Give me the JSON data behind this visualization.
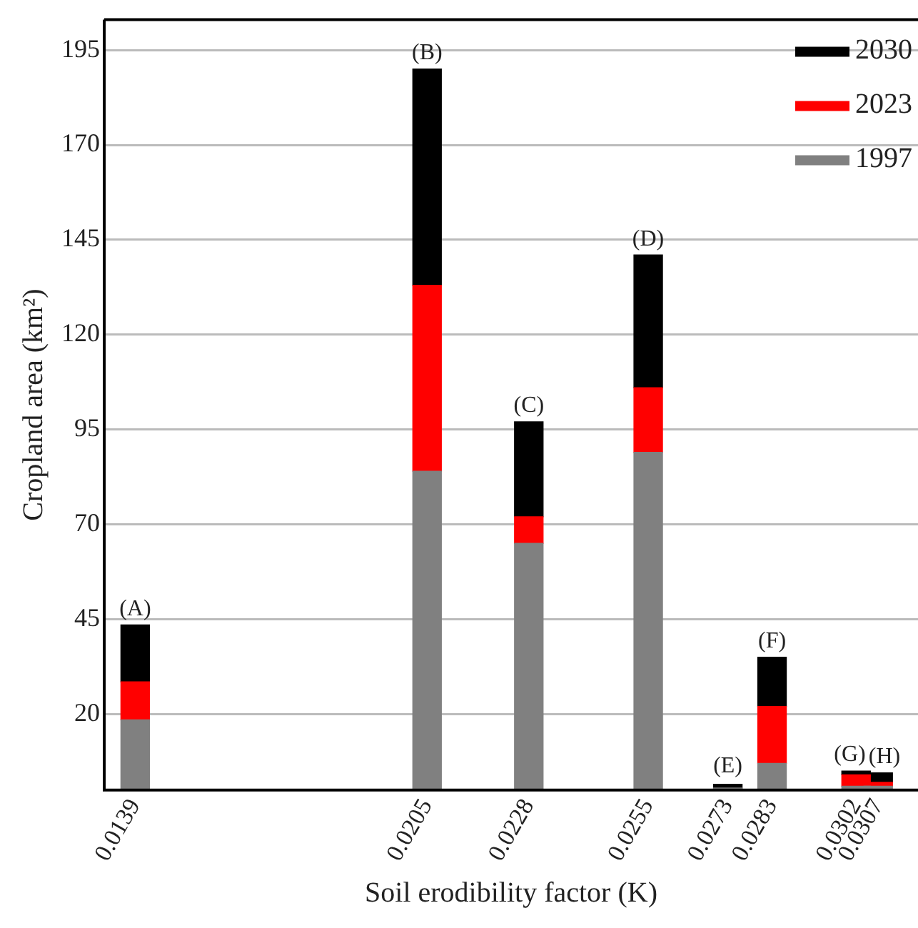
{
  "chart_data": {
    "type": "bar",
    "stacked": true,
    "xlabel": "Soil erodibility factor (K)",
    "ylabel": "Cropland area (km²)",
    "x": [
      0.0139,
      0.0205,
      0.0228,
      0.0255,
      0.0273,
      0.0283,
      0.0302,
      0.0307
    ],
    "xlim": [
      0.0132,
      0.0316
    ],
    "xticks": [
      0.0139,
      0.0205,
      0.0228,
      0.0255,
      0.0273,
      0.0283,
      0.0302,
      0.0307
    ],
    "ylim": [
      0,
      203
    ],
    "yticks": [
      20,
      45,
      70,
      95,
      120,
      145,
      170,
      195
    ],
    "series": [
      {
        "name": "1997",
        "color": "#808080",
        "values": [
          18.5,
          84,
          65,
          89,
          0.5,
          7,
          1,
          1
        ]
      },
      {
        "name": "2023",
        "color": "#ff0000",
        "values": [
          10,
          49,
          7,
          17,
          null,
          15,
          3,
          1
        ]
      },
      {
        "name": "2030",
        "color": "#000000",
        "values": [
          15,
          57,
          25,
          35,
          1,
          13,
          1,
          2.5
        ]
      }
    ],
    "annotations": [
      {
        "text": "(A)",
        "x": 0.0139,
        "y": 43.5
      },
      {
        "text": "(B)",
        "x": 0.0205,
        "y": 190
      },
      {
        "text": "(C)",
        "x": 0.0228,
        "y": 97
      },
      {
        "text": "(D)",
        "x": 0.0255,
        "y": 141
      },
      {
        "text": "(E)",
        "x": 0.0273,
        "y": 2
      },
      {
        "text": "(F)",
        "x": 0.0283,
        "y": 35
      },
      {
        "text": "(G)",
        "x": 0.0302,
        "y": 5
      },
      {
        "text": "(H)",
        "x": 0.0307,
        "y": 4.5
      }
    ],
    "grid": "y",
    "legend": "top right"
  }
}
